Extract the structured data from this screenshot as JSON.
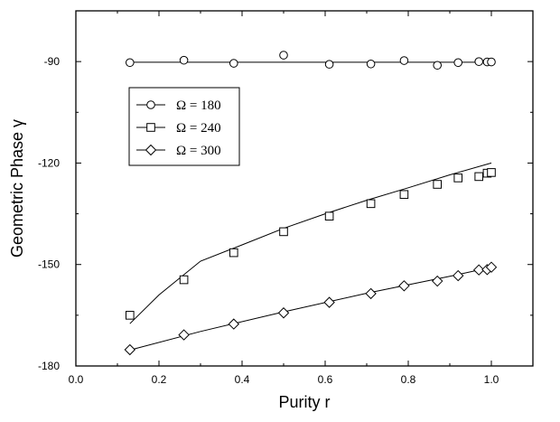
{
  "chart_data": {
    "type": "scatter",
    "title": "",
    "xlabel": "Purity r",
    "ylabel": "Geometric Phase  γ",
    "xlim": [
      0.0,
      1.1
    ],
    "ylim": [
      -180,
      -75
    ],
    "xticks": [
      "0.0",
      "0.2",
      "0.4",
      "0.6",
      "0.8",
      "1.0"
    ],
    "yticks": [
      "-90",
      "-120",
      "-150",
      "-180"
    ],
    "xtick_values": [
      0.0,
      0.2,
      0.4,
      0.6,
      0.8,
      1.0
    ],
    "ytick_values": [
      -90,
      -120,
      -150,
      -180
    ],
    "grid": false,
    "legend_position": "upper-left, inside",
    "series": [
      {
        "name": "Ω = 180",
        "marker": "circle",
        "points": [
          [
            0.13,
            -90.3
          ],
          [
            0.26,
            -89.6
          ],
          [
            0.38,
            -90.5
          ],
          [
            0.5,
            -88.1
          ],
          [
            0.61,
            -90.8
          ],
          [
            0.71,
            -90.7
          ],
          [
            0.79,
            -89.7
          ],
          [
            0.87,
            -91.1
          ],
          [
            0.92,
            -90.3
          ],
          [
            0.97,
            -90.0
          ],
          [
            0.99,
            -90.1
          ],
          [
            1.0,
            -90.1
          ]
        ],
        "fit": [
          [
            0.13,
            -90.2
          ],
          [
            1.0,
            -90.2
          ]
        ]
      },
      {
        "name": "Ω = 240",
        "marker": "square",
        "points": [
          [
            0.13,
            -165.0
          ],
          [
            0.26,
            -154.5
          ],
          [
            0.38,
            -146.5
          ],
          [
            0.5,
            -140.3
          ],
          [
            0.61,
            -135.7
          ],
          [
            0.71,
            -132.0
          ],
          [
            0.79,
            -129.3
          ],
          [
            0.87,
            -126.3
          ],
          [
            0.92,
            -124.4
          ],
          [
            0.97,
            -124.0
          ],
          [
            0.99,
            -123.0
          ],
          [
            1.0,
            -122.8
          ]
        ],
        "fit": [
          [
            0.13,
            -167.5
          ],
          [
            0.2,
            -159.0
          ],
          [
            0.3,
            -149.0
          ],
          [
            0.4,
            -144.2
          ],
          [
            0.5,
            -139.3
          ],
          [
            0.6,
            -135.0
          ],
          [
            0.7,
            -131.0
          ],
          [
            0.8,
            -127.3
          ],
          [
            0.9,
            -123.5
          ],
          [
            1.0,
            -120.0
          ]
        ]
      },
      {
        "name": "Ω = 300",
        "marker": "diamond",
        "points": [
          [
            0.13,
            -175.2
          ],
          [
            0.26,
            -170.8
          ],
          [
            0.38,
            -167.6
          ],
          [
            0.5,
            -164.3
          ],
          [
            0.61,
            -161.2
          ],
          [
            0.71,
            -158.6
          ],
          [
            0.79,
            -156.3
          ],
          [
            0.87,
            -154.9
          ],
          [
            0.92,
            -153.3
          ],
          [
            0.97,
            -151.6
          ],
          [
            0.99,
            -151.5
          ],
          [
            1.0,
            -150.8
          ]
        ],
        "fit": [
          [
            0.13,
            -175.3
          ],
          [
            0.3,
            -169.8
          ],
          [
            0.5,
            -164.0
          ],
          [
            0.7,
            -158.5
          ],
          [
            0.9,
            -153.5
          ],
          [
            1.0,
            -150.8
          ]
        ]
      }
    ]
  }
}
